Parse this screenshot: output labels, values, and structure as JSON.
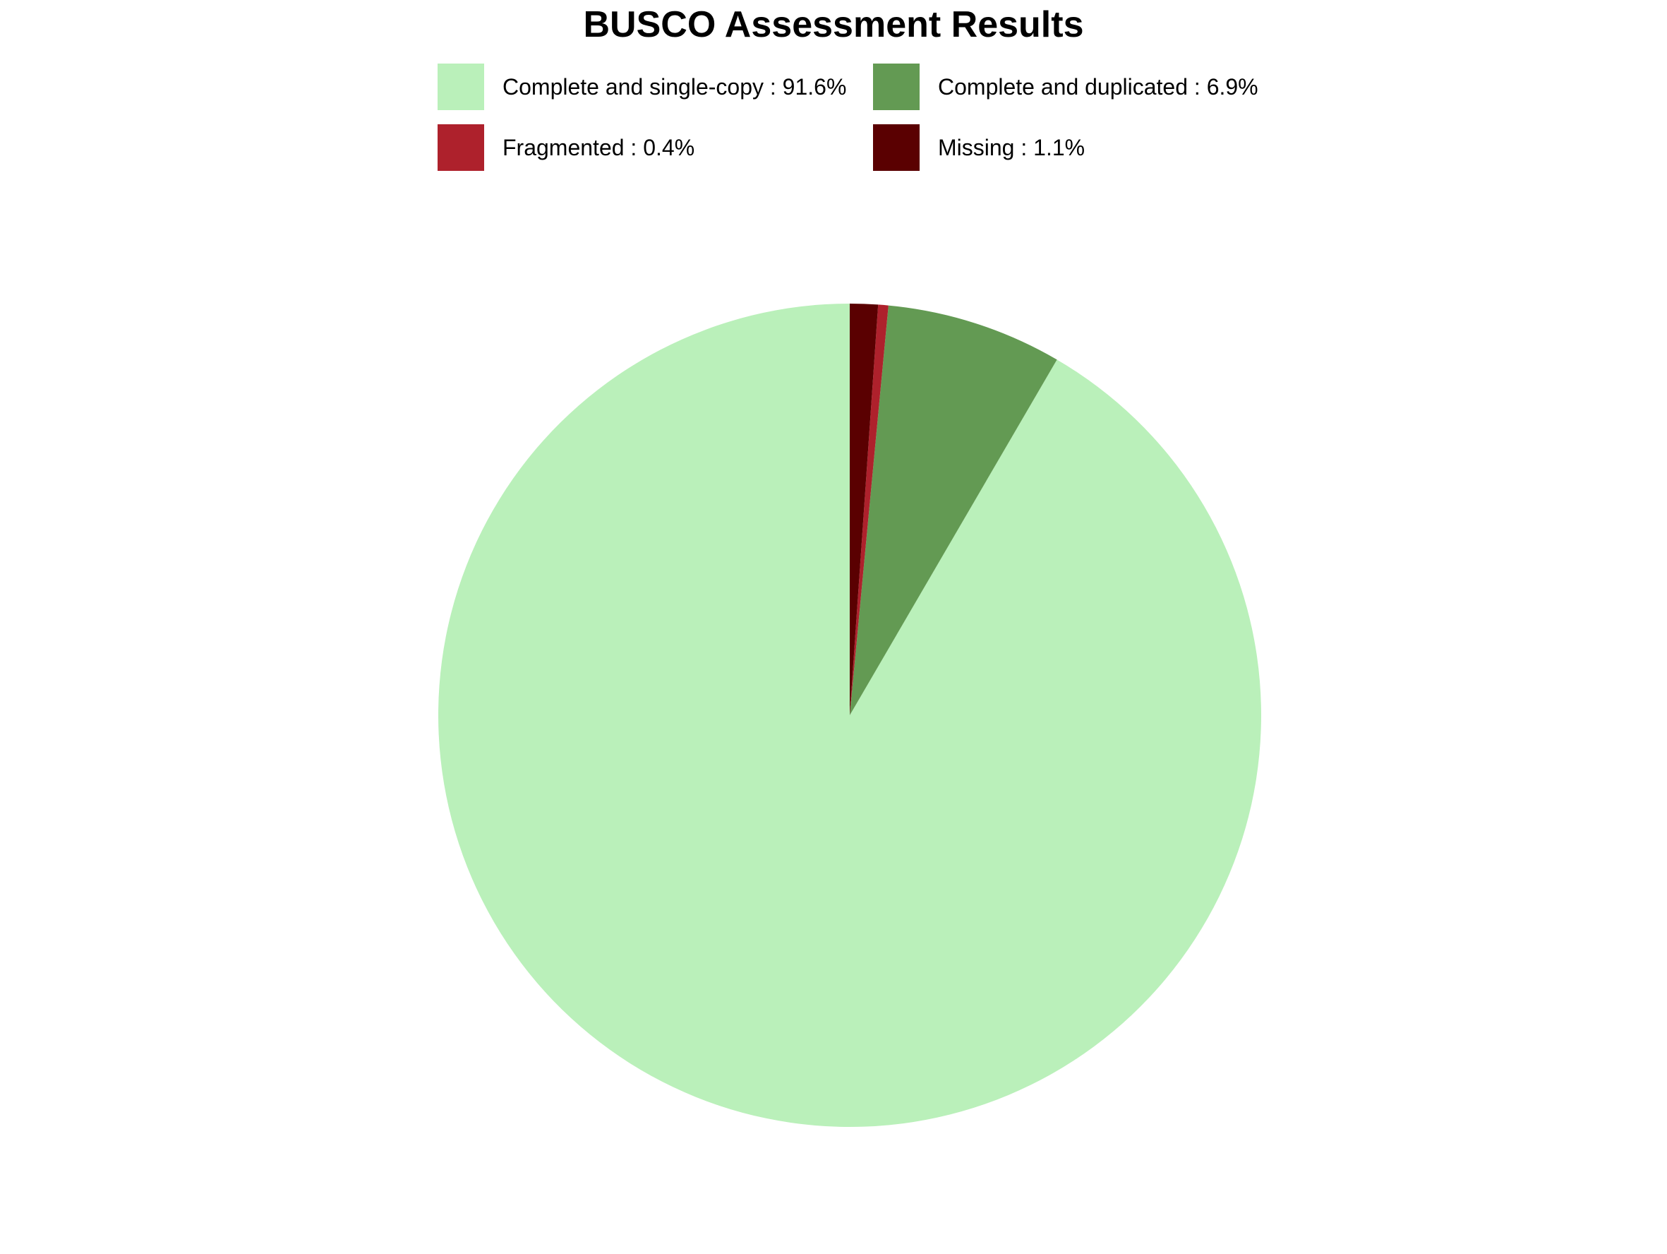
{
  "chart_data": {
    "type": "pie",
    "title": "BUSCO Assessment Results",
    "legend_position": "top",
    "slices": [
      {
        "label": "Complete and single-copy",
        "value": 91.6,
        "legend_text": "Complete and single-copy : 91.6%",
        "color": "#baf0ba"
      },
      {
        "label": "Complete and duplicated",
        "value": 6.9,
        "legend_text": "Complete and duplicated : 6.9%",
        "color": "#639a53"
      },
      {
        "label": "Fragmented",
        "value": 0.4,
        "legend_text": "Fragmented : 0.4%",
        "color": "#ae212c"
      },
      {
        "label": "Missing",
        "value": 1.1,
        "legend_text": "Missing : 1.1%",
        "color": "#5a0001"
      }
    ]
  }
}
